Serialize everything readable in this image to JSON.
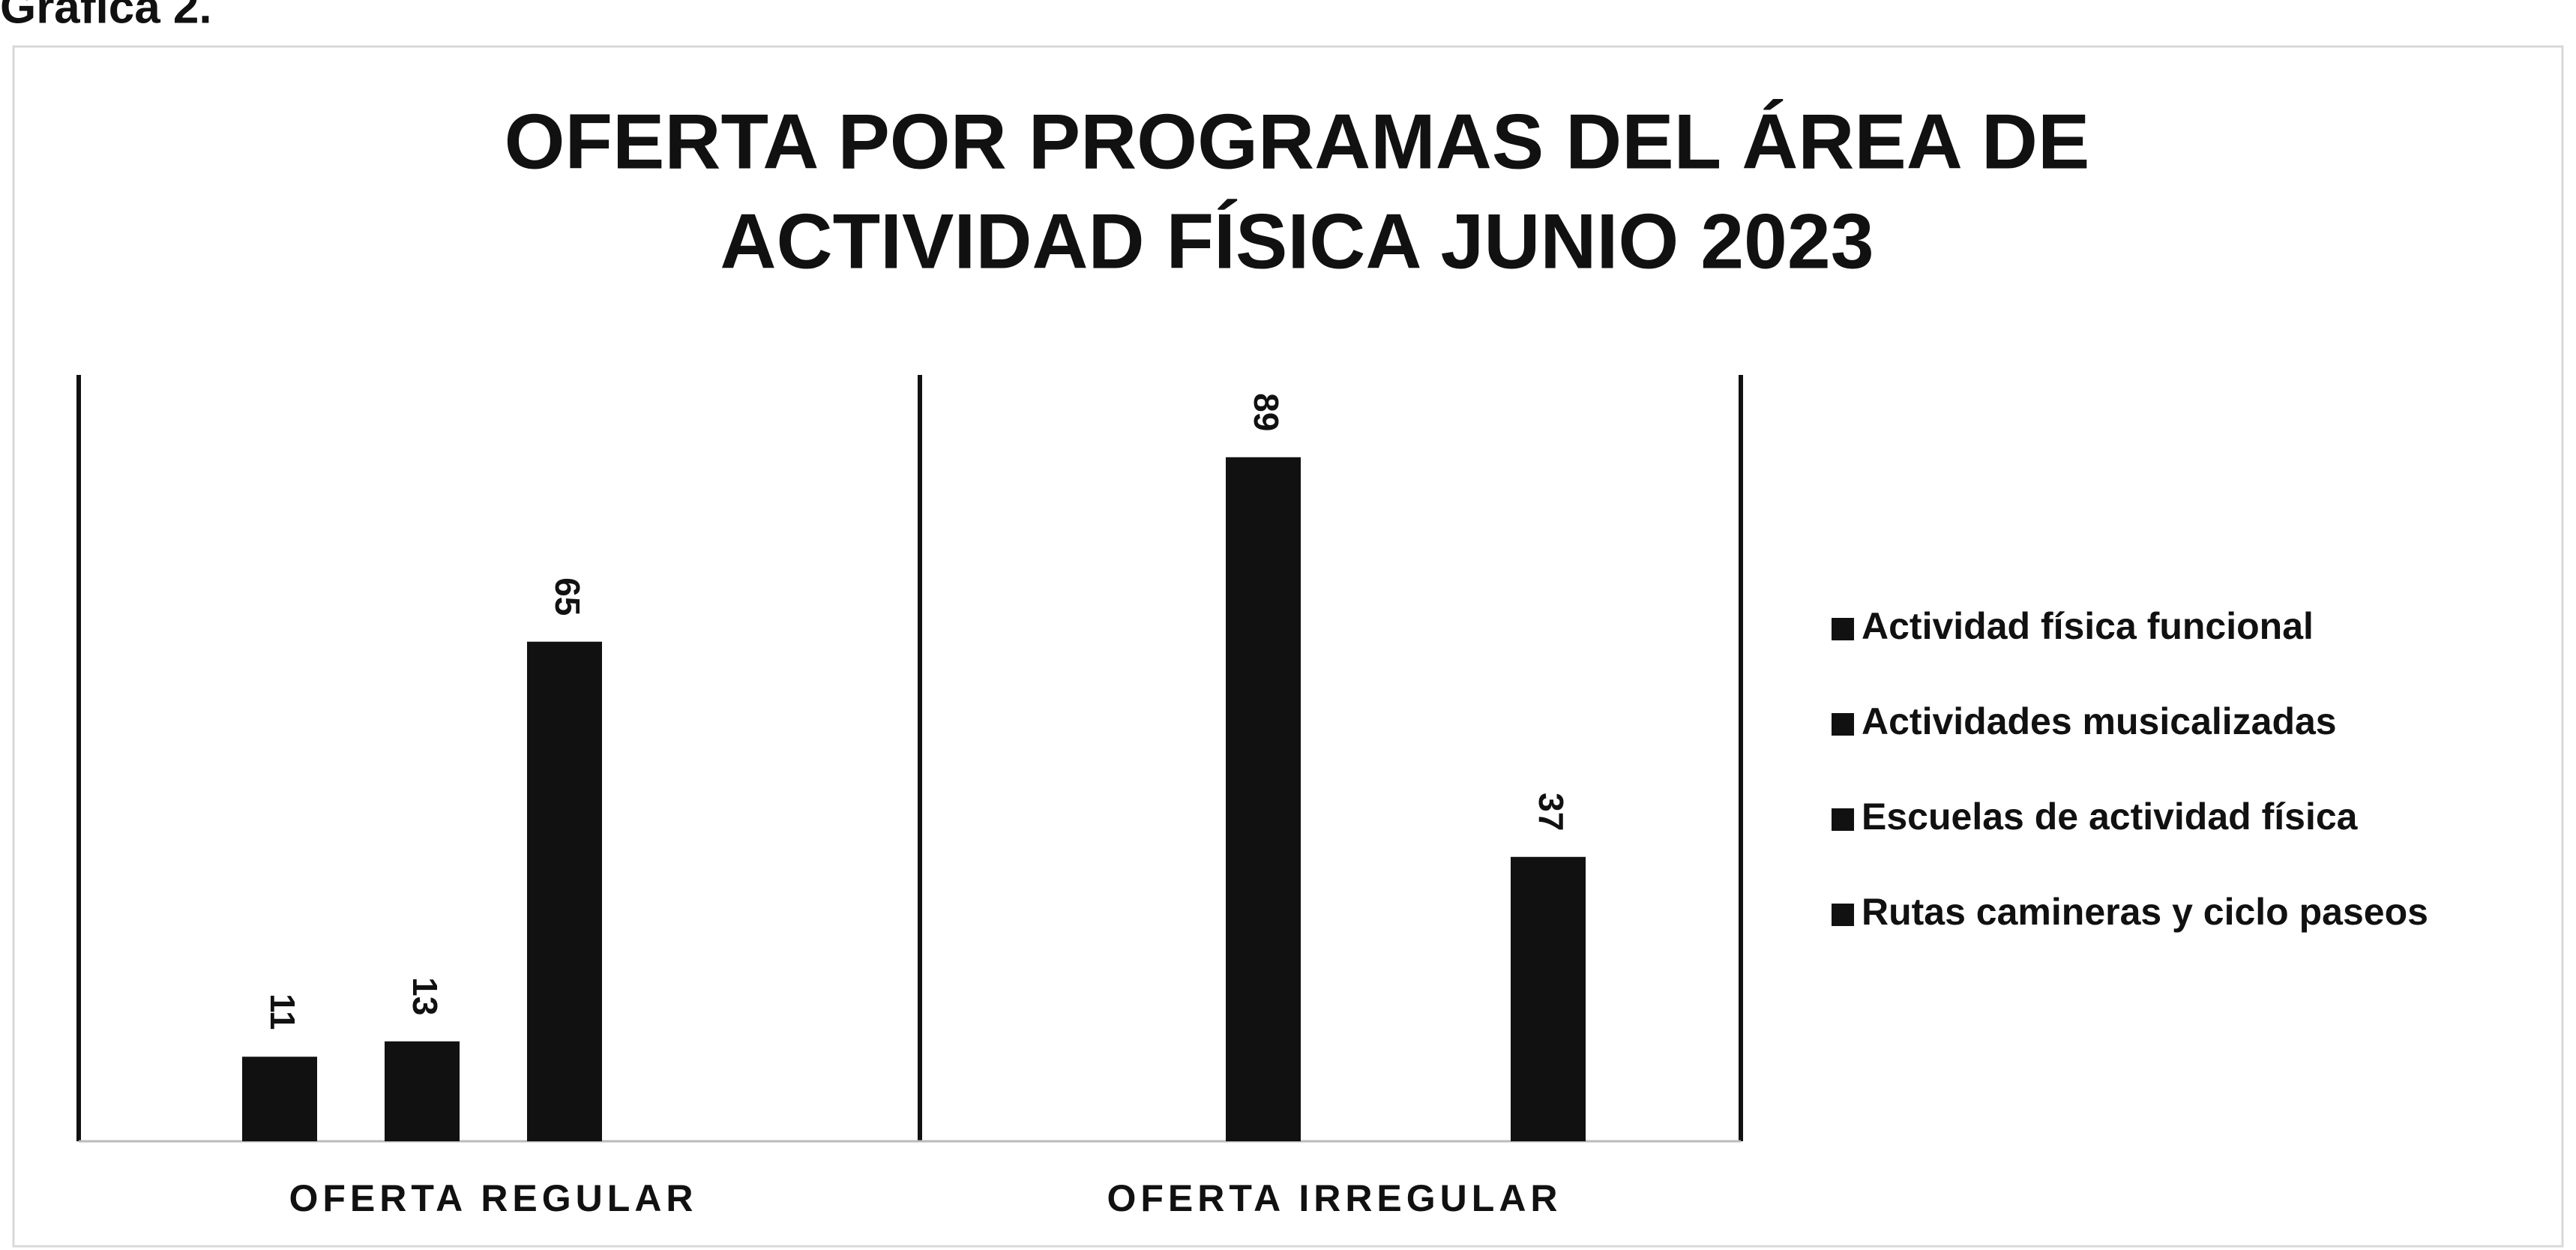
{
  "caption": "Gráfica 2.",
  "chart_data": {
    "type": "bar",
    "title": [
      "OFERTA POR PROGRAMAS DEL ÁREA DE",
      "ACTIVIDAD FÍSICA JUNIO 2023"
    ],
    "categories": [
      "OFERTA  REGULAR",
      "OFERTA IRREGULAR"
    ],
    "series": [
      {
        "name": "Actividad física funcional",
        "color": "#111111",
        "values": [
          11,
          null
        ]
      },
      {
        "name": "Actividades musicalizadas",
        "color": "#111111",
        "values": [
          13,
          89
        ]
      },
      {
        "name": "Escuelas de actividad física",
        "color": "#111111",
        "values": [
          65,
          null
        ]
      },
      {
        "name": "Rutas camineras y ciclo paseos",
        "color": "#111111",
        "values": [
          null,
          37
        ]
      }
    ],
    "legend": "right"
  }
}
